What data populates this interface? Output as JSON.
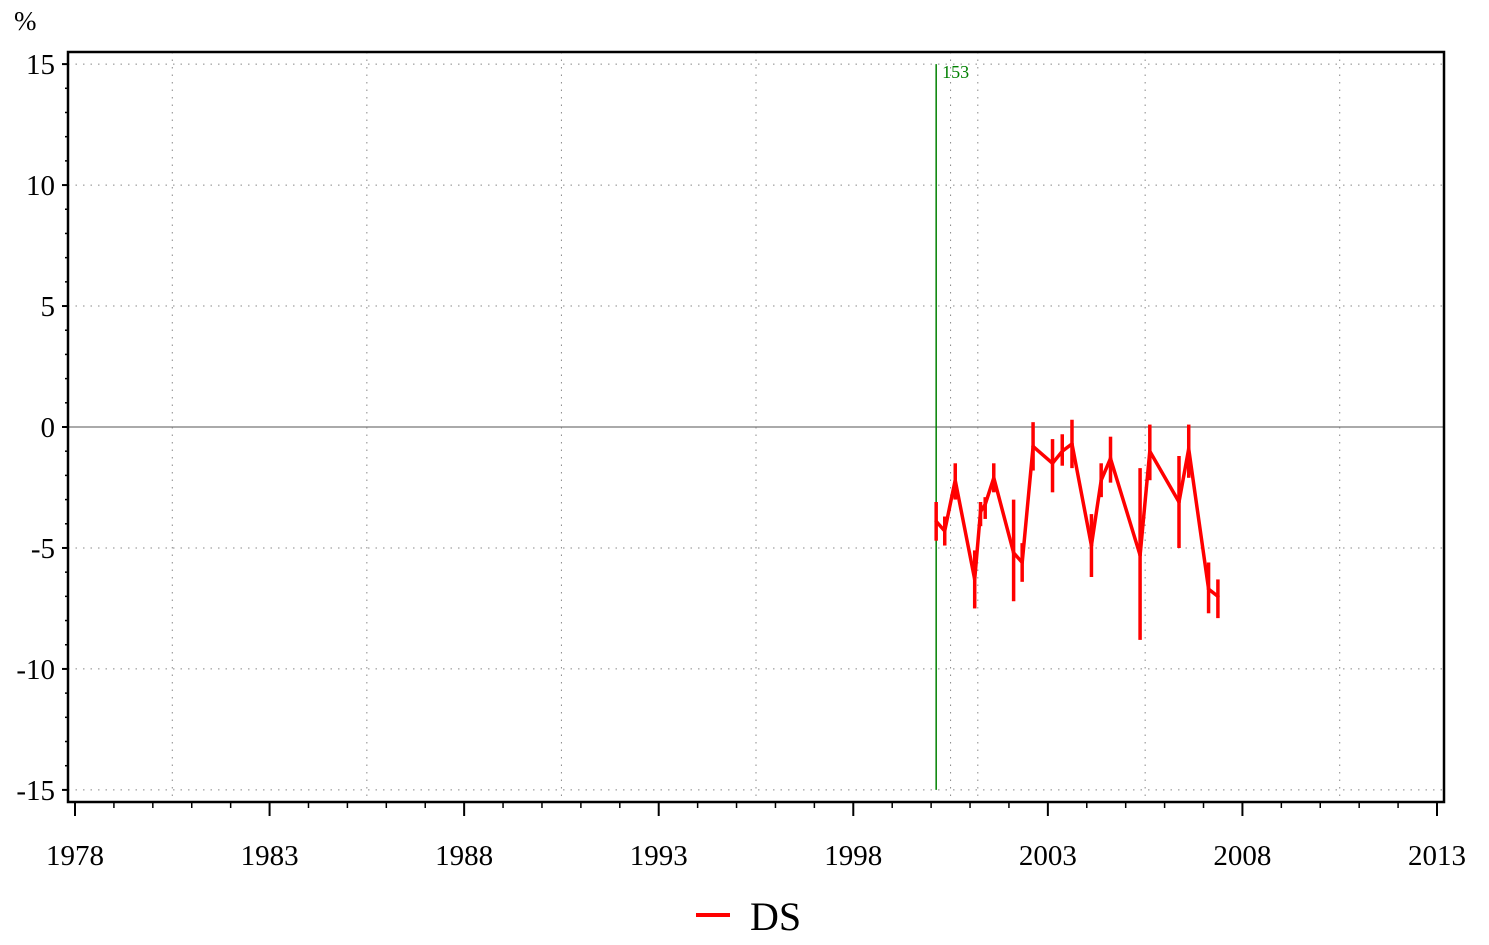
{
  "chart_data": {
    "type": "line",
    "unit_label": "%",
    "xlim": [
      1978,
      2013
    ],
    "ylim": [
      -15.5,
      15.5
    ],
    "x_ticks": [
      "1978",
      "1983",
      "1988",
      "1993",
      "1998",
      "2003",
      "2008",
      "2013"
    ],
    "y_ticks": [
      "15",
      "10",
      "5",
      "0",
      "-5",
      "-10",
      "-15"
    ],
    "grid": "dotted",
    "zero_line": true,
    "vertical_marker": {
      "x": 2000.13,
      "label": "153",
      "y_range": [
        -15,
        15
      ],
      "color": "#008000"
    },
    "legend": {
      "placement": "bottom-center"
    },
    "series": [
      {
        "name": "DS",
        "color": "#ff0000",
        "points": [
          {
            "x": 2000.13,
            "y": -3.9,
            "lo": -4.7,
            "hi": -3.1
          },
          {
            "x": 2000.35,
            "y": -4.3,
            "lo": -4.9,
            "hi": -3.7
          },
          {
            "x": 2000.62,
            "y": -2.2,
            "lo": -3.0,
            "hi": -1.5
          },
          {
            "x": 2001.12,
            "y": -6.3,
            "lo": -7.5,
            "hi": -5.1
          },
          {
            "x": 2001.27,
            "y": -3.5,
            "lo": -4.1,
            "hi": -3.1
          },
          {
            "x": 2001.39,
            "y": -3.2,
            "lo": -3.8,
            "hi": -2.9
          },
          {
            "x": 2001.61,
            "y": -2.1,
            "lo": -2.7,
            "hi": -1.5
          },
          {
            "x": 2002.12,
            "y": -5.2,
            "lo": -7.2,
            "hi": -3.0
          },
          {
            "x": 2002.34,
            "y": -5.6,
            "lo": -6.4,
            "hi": -4.8
          },
          {
            "x": 2002.62,
            "y": -0.8,
            "lo": -1.8,
            "hi": 0.2
          },
          {
            "x": 2003.12,
            "y": -1.5,
            "lo": -2.7,
            "hi": -0.5
          },
          {
            "x": 2003.37,
            "y": -1.0,
            "lo": -1.6,
            "hi": -0.3
          },
          {
            "x": 2003.62,
            "y": -0.7,
            "lo": -1.7,
            "hi": 0.3
          },
          {
            "x": 2004.12,
            "y": -4.9,
            "lo": -6.2,
            "hi": -3.6
          },
          {
            "x": 2004.37,
            "y": -2.2,
            "lo": -2.9,
            "hi": -1.5
          },
          {
            "x": 2004.61,
            "y": -1.3,
            "lo": -2.3,
            "hi": -0.4
          },
          {
            "x": 2005.37,
            "y": -5.3,
            "lo": -8.8,
            "hi": -1.7
          },
          {
            "x": 2005.62,
            "y": -1.0,
            "lo": -2.2,
            "hi": 0.1
          },
          {
            "x": 2006.37,
            "y": -3.1,
            "lo": -5.0,
            "hi": -1.2
          },
          {
            "x": 2006.62,
            "y": -0.9,
            "lo": -2.1,
            "hi": 0.1
          },
          {
            "x": 2007.13,
            "y": -6.7,
            "lo": -7.7,
            "hi": -5.6
          },
          {
            "x": 2007.37,
            "y": -7.0,
            "lo": -7.9,
            "hi": -6.3
          }
        ]
      }
    ]
  }
}
